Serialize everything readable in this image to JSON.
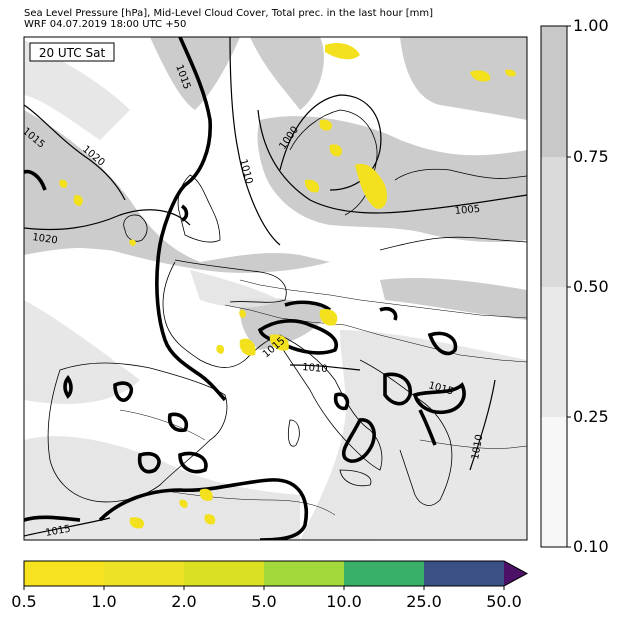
{
  "header": {
    "line1": "Sea Level Pressure [hPa], Mid-Level Cloud Cover, Total prec. in the last hour [mm]",
    "line2": "WRF 04.07.2019 18:00 UTC +50"
  },
  "time_label": "20 UTC Sat",
  "isobar_labels": [
    "1015",
    "1020",
    "1020",
    "1000",
    "1010",
    "1005",
    "1015",
    "1010",
    "1015",
    "1015",
    "1010",
    "1015"
  ],
  "cloud_colorbar": {
    "ticks": [
      "1.00",
      "0.75",
      "0.50",
      "0.25",
      "0.10"
    ],
    "colors": [
      "#c8c8c8",
      "#dadada",
      "#e9e9e9",
      "#f7f7f7"
    ]
  },
  "precip_colorbar": {
    "ticks": [
      "0.5",
      "1.0",
      "2.0",
      "5.0",
      "10.0",
      "25.0",
      "50.0"
    ],
    "colors": [
      "#f6e21e",
      "#ede223",
      "#dbe022",
      "#a3d93a",
      "#3aaf6a",
      "#3b5186",
      "#4c1066"
    ]
  },
  "colors": {
    "cloud_shade": "#cccccc",
    "cloud_light": "#e4e4e4",
    "precip": "#f4e11e",
    "isobar": "#000000",
    "coast": "#000000"
  }
}
